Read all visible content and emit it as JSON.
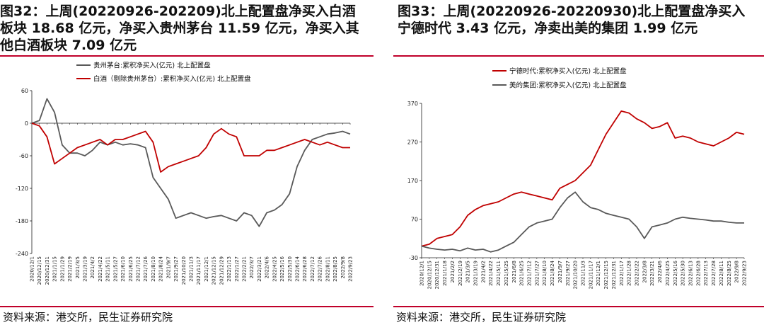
{
  "panels": [
    {
      "title": "图32：上周(20220926-202209)北上配置盘净买入白酒板块 18.68 亿元，净买入贵州茅台 11.59 亿元，净买入其他白酒板块 7.09 亿元",
      "source": "资料来源：港交所，民生证券研究院"
    },
    {
      "title": "图33：上周(20220926-20220930)北上配置盘净买入宁德时代 3.43 亿元，净卖出美的集团 1.99 亿元",
      "source": "资料来源：港交所，民生证券研究院"
    }
  ],
  "chart_data": [
    {
      "type": "line",
      "ylim": [
        -240,
        60
      ],
      "yticks": [
        60,
        0,
        -60,
        -120,
        -180,
        -240
      ],
      "legend_position": "top-center",
      "categories": [
        "2020/12/1",
        "2020/12/15",
        "2020/12/31",
        "2021/1/15",
        "2021/1/29",
        "2021/2/19",
        "2021/3/5",
        "2021/3/19",
        "2021/4/2",
        "2021/4/22",
        "2021/5/11",
        "2021/5/27",
        "2021/6/10",
        "2021/6/25",
        "2021/7/12",
        "2021/7/26",
        "2021/8/10",
        "2021/8/24",
        "2021/9/7",
        "2021/9/27",
        "2021/10/20",
        "2021/11/3",
        "2021/11/17",
        "2021/12/1",
        "2021/12/15",
        "2021/12/29",
        "2022/1/13",
        "2022/1/27",
        "2022/2/21",
        "2022/3/7",
        "2022/3/21",
        "2022/4/6",
        "2022/4/25",
        "2022/5/16",
        "2022/5/30",
        "2022/6/14",
        "2022/6/28",
        "2022/7/12",
        "2022/7/26",
        "2022/8/11",
        "2022/8/25",
        "2022/9/8",
        "2022/9/23"
      ],
      "series": [
        {
          "name": "贵州茅台:累积净买入(亿元) 北上配置盘",
          "color": "#595959",
          "values": [
            0,
            5,
            45,
            20,
            -40,
            -55,
            -55,
            -60,
            -50,
            -35,
            -40,
            -35,
            -40,
            -38,
            -40,
            -45,
            -100,
            -120,
            -140,
            -175,
            -170,
            -165,
            -170,
            -175,
            -172,
            -170,
            -175,
            -180,
            -165,
            -170,
            -190,
            -165,
            -160,
            -150,
            -130,
            -80,
            -50,
            -30,
            -25,
            -20,
            -18,
            -15,
            -20
          ]
        },
        {
          "name": "白酒（剔除贵州茅台）:累积净买入(亿元) 北上配置盘",
          "color": "#c00000",
          "values": [
            0,
            -5,
            -25,
            -75,
            -65,
            -55,
            -45,
            -40,
            -35,
            -30,
            -40,
            -30,
            -30,
            -25,
            -20,
            -15,
            -35,
            -90,
            -80,
            -75,
            -70,
            -65,
            -60,
            -45,
            -20,
            -10,
            -20,
            -25,
            -60,
            -60,
            -60,
            -50,
            -50,
            -45,
            -40,
            -35,
            -30,
            -35,
            -40,
            -35,
            -40,
            -45,
            -45
          ]
        }
      ]
    },
    {
      "type": "line",
      "ylim": [
        -30,
        370
      ],
      "yticks": [
        370,
        270,
        170,
        70,
        -30
      ],
      "legend_position": "top-left",
      "categories": [
        "2020/12/1",
        "2020/12/15",
        "2020/12/31",
        "2021/1/18",
        "2021/2/2",
        "2021/2/19",
        "2021/3/5",
        "2021/3/19",
        "2021/4/2",
        "2021/4/22",
        "2021/5/11",
        "2021/5/25",
        "2021/6/8",
        "2021/6/25",
        "2021/7/12",
        "2021/7/27",
        "2021/8/10",
        "2021/8/24",
        "2021/9/7",
        "2021/9/27",
        "2021/10/20",
        "2021/11/3",
        "2021/11/17",
        "2021/12/1",
        "2021/12/15",
        "2021/12/31",
        "2022/1/17",
        "2022/1/28",
        "2022/2/22",
        "2022/3/8",
        "2022/3/21",
        "2022/4/6",
        "2022/4/25",
        "2022/5/16",
        "2022/5/30",
        "2022/6/13",
        "2022/6/28",
        "2022/7/13",
        "2022/7/28",
        "2022/8/11",
        "2022/8/25",
        "2022/9/8",
        "2022/9/23"
      ],
      "series": [
        {
          "name": "宁德时代:累积净买入(亿元) 北上配置盘",
          "color": "#c00000",
          "values": [
            0,
            5,
            20,
            25,
            30,
            50,
            80,
            95,
            105,
            110,
            115,
            125,
            135,
            140,
            135,
            130,
            125,
            120,
            150,
            160,
            170,
            190,
            210,
            250,
            290,
            320,
            350,
            345,
            330,
            320,
            305,
            310,
            320,
            280,
            285,
            280,
            270,
            265,
            260,
            270,
            280,
            295,
            290
          ]
        },
        {
          "name": "美的集团:累积净买入(亿元) 北上配置盘",
          "color": "#595959",
          "values": [
            0,
            -5,
            -8,
            -10,
            -8,
            -12,
            -5,
            -10,
            -8,
            -15,
            -10,
            0,
            10,
            30,
            50,
            60,
            65,
            70,
            100,
            125,
            140,
            115,
            100,
            95,
            85,
            80,
            75,
            70,
            50,
            20,
            50,
            55,
            60,
            70,
            75,
            72,
            70,
            68,
            65,
            65,
            62,
            60,
            60
          ]
        }
      ]
    }
  ]
}
